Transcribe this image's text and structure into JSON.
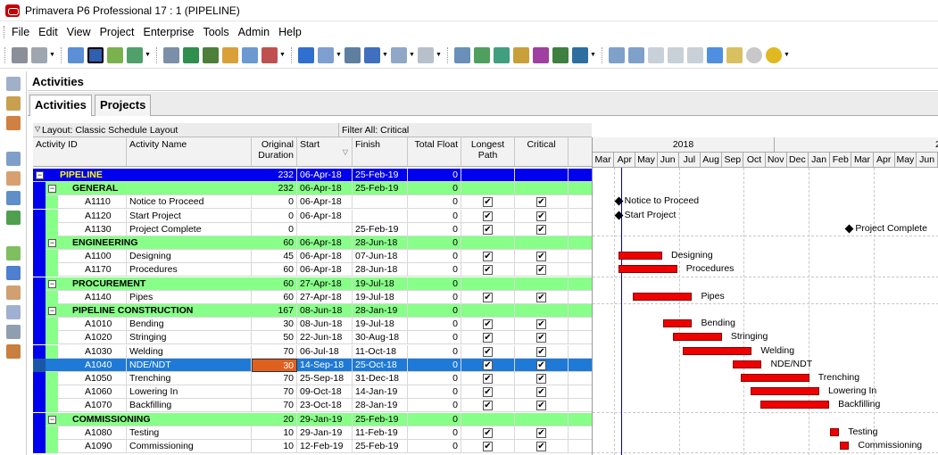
{
  "window": {
    "title": "Primavera P6 Professional 17 : 1 (PIPELINE)"
  },
  "menu": [
    "File",
    "Edit",
    "View",
    "Project",
    "Enterprise",
    "Tools",
    "Admin",
    "Help"
  ],
  "panel": {
    "title": "Activities"
  },
  "tabs": [
    {
      "label": "Activities",
      "active": true
    },
    {
      "label": "Projects",
      "active": false
    }
  ],
  "layout_bar": {
    "layout": "Layout: Classic Schedule Layout",
    "filter": "Filter All: Critical"
  },
  "columns": [
    "Activity ID",
    "Activity Name",
    "Original Duration",
    "Start",
    "Finish",
    "Total Float",
    "Longest Path",
    "Critical"
  ],
  "columns_split": {
    "orig1": "Original",
    "orig2": "Duration",
    "long1": "Longest",
    "long2": "Path"
  },
  "rows": [
    {
      "level": 0,
      "id": "PIPELINE",
      "name": "",
      "dur": "232",
      "start": "06-Apr-18",
      "finish": "25-Feb-19",
      "float": "0",
      "lp": false,
      "crit": false
    },
    {
      "level": 1,
      "id": "GENERAL",
      "name": "",
      "dur": "232",
      "start": "06-Apr-18",
      "finish": "25-Feb-19",
      "float": "0",
      "lp": false,
      "crit": false
    },
    {
      "level": 2,
      "id": "A1110",
      "name": "Notice to Proceed",
      "dur": "0",
      "start": "06-Apr-18",
      "finish": "",
      "float": "0",
      "lp": true,
      "crit": true
    },
    {
      "level": 2,
      "id": "A1120",
      "name": "Start Project",
      "dur": "0",
      "start": "06-Apr-18",
      "finish": "",
      "float": "0",
      "lp": true,
      "crit": true
    },
    {
      "level": 2,
      "id": "A1130",
      "name": "Project Complete",
      "dur": "0",
      "start": "",
      "finish": "25-Feb-19",
      "float": "0",
      "lp": true,
      "crit": true
    },
    {
      "level": 1,
      "id": "ENGINEERING",
      "name": "",
      "dur": "60",
      "start": "06-Apr-18",
      "finish": "28-Jun-18",
      "float": "0",
      "lp": false,
      "crit": false
    },
    {
      "level": 2,
      "id": "A1100",
      "name": "Designing",
      "dur": "45",
      "start": "06-Apr-18",
      "finish": "07-Jun-18",
      "float": "0",
      "lp": true,
      "crit": true
    },
    {
      "level": 2,
      "id": "A1170",
      "name": "Procedures",
      "dur": "60",
      "start": "06-Apr-18",
      "finish": "28-Jun-18",
      "float": "0",
      "lp": true,
      "crit": true
    },
    {
      "level": 1,
      "id": "PROCUREMENT",
      "name": "",
      "dur": "60",
      "start": "27-Apr-18",
      "finish": "19-Jul-18",
      "float": "0",
      "lp": false,
      "crit": false
    },
    {
      "level": 2,
      "id": "A1140",
      "name": "Pipes",
      "dur": "60",
      "start": "27-Apr-18",
      "finish": "19-Jul-18",
      "float": "0",
      "lp": true,
      "crit": true
    },
    {
      "level": 1,
      "id": "PIPELINE CONSTRUCTION",
      "name": "",
      "dur": "167",
      "start": "08-Jun-18",
      "finish": "28-Jan-19",
      "float": "0",
      "lp": false,
      "crit": false
    },
    {
      "level": 2,
      "id": "A1010",
      "name": "Bending",
      "dur": "30",
      "start": "08-Jun-18",
      "finish": "19-Jul-18",
      "float": "0",
      "lp": true,
      "crit": true
    },
    {
      "level": 2,
      "id": "A1020",
      "name": "Stringing",
      "dur": "50",
      "start": "22-Jun-18",
      "finish": "30-Aug-18",
      "float": "0",
      "lp": true,
      "crit": true
    },
    {
      "level": 2,
      "id": "A1030",
      "name": "Welding",
      "dur": "70",
      "start": "06-Jul-18",
      "finish": "11-Oct-18",
      "float": "0",
      "lp": true,
      "crit": true
    },
    {
      "level": 2,
      "id": "A1040",
      "name": "NDE/NDT",
      "dur": "30",
      "start": "14-Sep-18",
      "finish": "25-Oct-18",
      "float": "0",
      "lp": true,
      "crit": true,
      "selected": true
    },
    {
      "level": 2,
      "id": "A1050",
      "name": "Trenching",
      "dur": "70",
      "start": "25-Sep-18",
      "finish": "31-Dec-18",
      "float": "0",
      "lp": true,
      "crit": true
    },
    {
      "level": 2,
      "id": "A1060",
      "name": "Lowering In",
      "dur": "70",
      "start": "09-Oct-18",
      "finish": "14-Jan-19",
      "float": "0",
      "lp": true,
      "crit": true
    },
    {
      "level": 2,
      "id": "A1070",
      "name": "Backfilling",
      "dur": "70",
      "start": "23-Oct-18",
      "finish": "28-Jan-19",
      "float": "0",
      "lp": true,
      "crit": true
    },
    {
      "level": 1,
      "id": "COMMISSIONING",
      "name": "",
      "dur": "20",
      "start": "29-Jan-19",
      "finish": "25-Feb-19",
      "float": "0",
      "lp": false,
      "crit": false
    },
    {
      "level": 2,
      "id": "A1080",
      "name": "Testing",
      "dur": "10",
      "start": "29-Jan-19",
      "finish": "11-Feb-19",
      "float": "0",
      "lp": true,
      "crit": true
    },
    {
      "level": 2,
      "id": "A1090",
      "name": "Commissioning",
      "dur": "10",
      "start": "12-Feb-19",
      "finish": "25-Feb-19",
      "float": "0",
      "lp": true,
      "crit": true
    }
  ],
  "gantt": {
    "years": [
      "2018",
      "2"
    ],
    "months": [
      "Mar",
      "Apr",
      "May",
      "Jun",
      "Jul",
      "Aug",
      "Sep",
      "Oct",
      "Nov",
      "Dec",
      "Jan",
      "Feb",
      "Mar",
      "Apr",
      "May",
      "Jun"
    ],
    "bars": [
      {
        "row": 2,
        "type": "milestone",
        "label": "Notice to Proceed"
      },
      {
        "row": 3,
        "type": "milestone",
        "label": "Start Project"
      },
      {
        "row": 4,
        "type": "milestone",
        "label": "Project Complete"
      },
      {
        "row": 6,
        "label": "Designing"
      },
      {
        "row": 7,
        "label": "Procedures"
      },
      {
        "row": 9,
        "label": "Pipes"
      },
      {
        "row": 11,
        "label": "Bending"
      },
      {
        "row": 12,
        "label": "Stringing"
      },
      {
        "row": 13,
        "label": "Welding"
      },
      {
        "row": 14,
        "label": "NDE/NDT"
      },
      {
        "row": 15,
        "label": "Trenching"
      },
      {
        "row": 16,
        "label": "Lowering In"
      },
      {
        "row": 17,
        "label": "Backfilling"
      },
      {
        "row": 19,
        "label": "Testing"
      },
      {
        "row": 20,
        "label": "Commissioning"
      }
    ]
  },
  "colors": {
    "project_row": "#0000ee",
    "wbs_row": "#88ff88",
    "selected_row": "#1e7ad6",
    "bar": "#ee0000"
  }
}
